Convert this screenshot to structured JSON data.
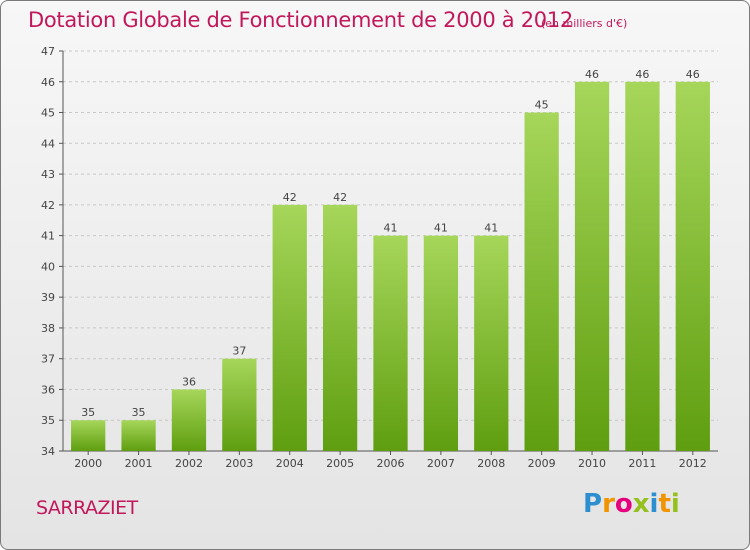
{
  "title": "Dotation Globale de Fonctionnement de 2000 à 2012",
  "subtitle": "(en milliers d'€)",
  "commune": "SARRAZIET",
  "logo_text": "Proxiti",
  "colors": {
    "title": "#c2185b",
    "bar_top": "#a6d65a",
    "bar_bottom": "#5f9e10",
    "grid": "#c8c8c8"
  },
  "chart_data": {
    "type": "bar",
    "categories": [
      "2000",
      "2001",
      "2002",
      "2003",
      "2004",
      "2005",
      "2006",
      "2007",
      "2008",
      "2009",
      "2010",
      "2011",
      "2012"
    ],
    "values": [
      35,
      35,
      36,
      37,
      42,
      42,
      41,
      41,
      41,
      45,
      46,
      46,
      46
    ],
    "ylim": [
      34,
      47
    ],
    "yticks": [
      34,
      35,
      36,
      37,
      38,
      39,
      40,
      41,
      42,
      43,
      44,
      45,
      46,
      47
    ],
    "grid": true,
    "xlabel": "",
    "ylabel": ""
  }
}
